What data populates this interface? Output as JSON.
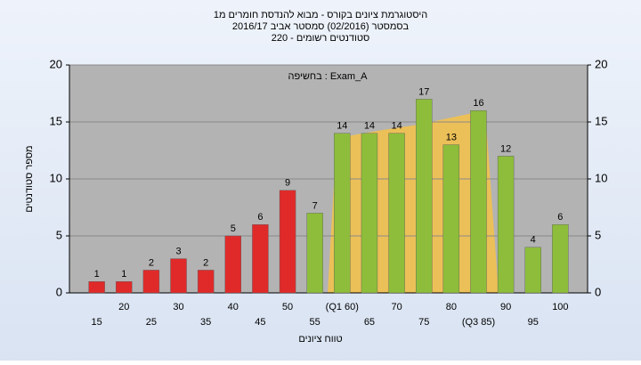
{
  "chart_data": {
    "type": "bar",
    "title": "היסטוגרמת ציונים בקורס - מבוא להנדסת חומרים מ1",
    "subtitle": "בסמסטר (02/2016) סמסטר אביב 2016/17",
    "subtitle2": "סטודנטים רשומים - 220",
    "annotation": "בחשיפה : Exam_A",
    "xlabel": "טווח ציונים",
    "ylabel": "מספר סטודנטים",
    "categories": [
      "15",
      "20",
      "25",
      "30",
      "35",
      "40",
      "45",
      "50",
      "55",
      "(Q1 60)",
      "65",
      "70",
      "75",
      "80",
      "(Q3 85)",
      "90",
      "95",
      "100"
    ],
    "values": [
      1,
      1,
      2,
      3,
      2,
      5,
      6,
      9,
      7,
      14,
      14,
      14,
      17,
      13,
      16,
      12,
      4,
      6
    ],
    "colors": [
      "#e02a2a",
      "#e02a2a",
      "#e02a2a",
      "#e02a2a",
      "#e02a2a",
      "#e02a2a",
      "#e02a2a",
      "#e02a2a",
      "#8dbd3a",
      "#8dbd3a",
      "#8dbd3a",
      "#8dbd3a",
      "#8dbd3a",
      "#8dbd3a",
      "#8dbd3a",
      "#8dbd3a",
      "#8dbd3a",
      "#8dbd3a"
    ],
    "ylim": [
      0,
      20
    ],
    "yticks": [
      0,
      5,
      10,
      15,
      20
    ],
    "y2lim": [
      0,
      20
    ],
    "y2ticks": [
      0,
      5,
      10,
      15,
      20
    ],
    "grid": true
  }
}
